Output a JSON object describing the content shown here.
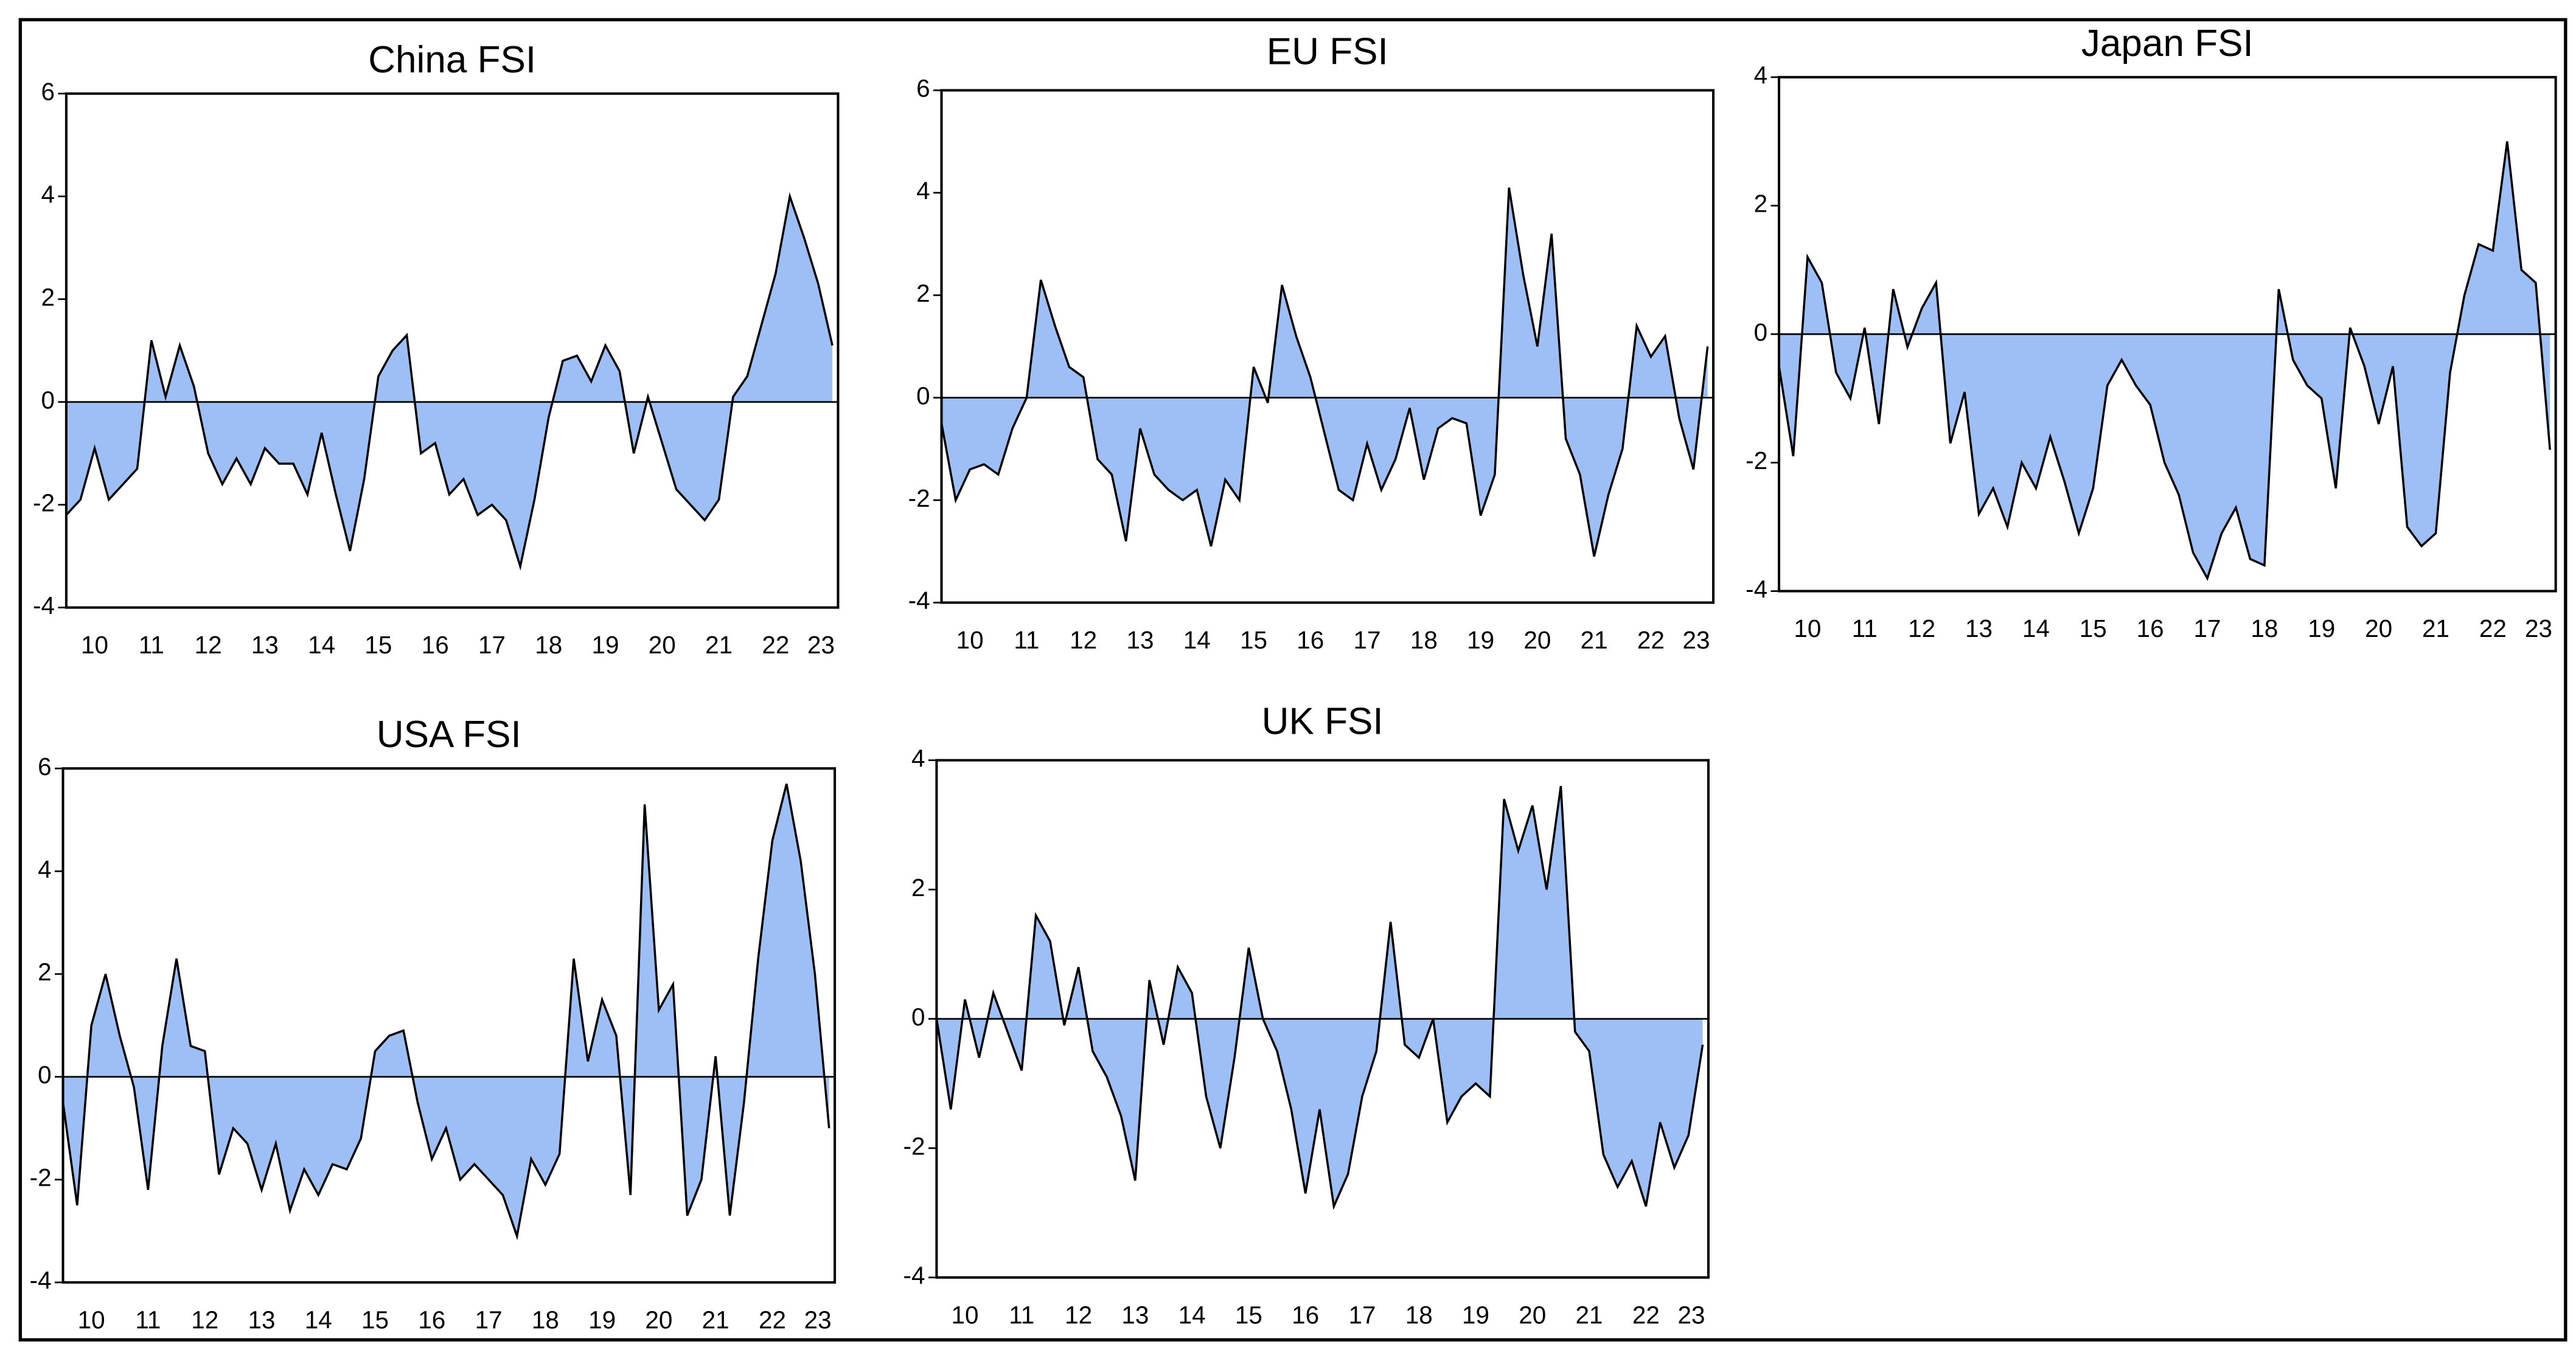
{
  "chart_data": [
    {
      "type": "area",
      "title": "China FSI",
      "color": "#9dbff5",
      "line_color": "#000000",
      "x": [
        2010,
        2010.25,
        2010.5,
        2010.75,
        2011,
        2011.25,
        2011.5,
        2011.75,
        2012,
        2012.25,
        2012.5,
        2012.75,
        2013,
        2013.25,
        2013.5,
        2013.75,
        2014,
        2014.25,
        2014.5,
        2014.75,
        2015,
        2015.25,
        2015.5,
        2015.75,
        2016,
        2016.25,
        2016.5,
        2016.75,
        2017,
        2017.25,
        2017.5,
        2017.75,
        2018,
        2018.25,
        2018.5,
        2018.75,
        2019,
        2019.25,
        2019.5,
        2019.75,
        2020,
        2020.25,
        2020.5,
        2020.75,
        2021,
        2021.25,
        2021.5,
        2021.75,
        2022,
        2022.25,
        2022.5,
        2022.75,
        2023,
        2023.25,
        2023.5
      ],
      "values": [
        -2.2,
        -1.9,
        -0.9,
        -1.9,
        -1.6,
        -1.3,
        1.2,
        0.1,
        1.1,
        0.3,
        -1.0,
        -1.6,
        -1.1,
        -1.6,
        -0.9,
        -1.2,
        -1.2,
        -1.8,
        -0.6,
        -1.8,
        -2.9,
        -1.5,
        0.5,
        1.0,
        1.3,
        -1.0,
        -0.8,
        -1.8,
        -1.5,
        -2.2,
        -2.0,
        -2.3,
        -3.2,
        -1.9,
        -0.3,
        0.8,
        0.9,
        0.4,
        1.1,
        0.6,
        -1.0,
        0.1,
        -0.8,
        -1.7,
        -2.0,
        -2.3,
        -1.9,
        0.1,
        0.5,
        1.5,
        2.5,
        4.0,
        3.2,
        2.3,
        1.1
      ],
      "xlim": [
        2010,
        2023.6
      ],
      "xticks": [
        {
          "value": 2010.5,
          "label": "10"
        },
        {
          "value": 2011.5,
          "label": "11"
        },
        {
          "value": 2012.5,
          "label": "12"
        },
        {
          "value": 2013.5,
          "label": "13"
        },
        {
          "value": 2014.5,
          "label": "14"
        },
        {
          "value": 2015.5,
          "label": "15"
        },
        {
          "value": 2016.5,
          "label": "16"
        },
        {
          "value": 2017.5,
          "label": "17"
        },
        {
          "value": 2018.5,
          "label": "18"
        },
        {
          "value": 2019.5,
          "label": "19"
        },
        {
          "value": 2020.5,
          "label": "20"
        },
        {
          "value": 2021.5,
          "label": "21"
        },
        {
          "value": 2022.5,
          "label": "22"
        },
        {
          "value": 2023.3,
          "label": "23"
        }
      ],
      "ylim": [
        -4,
        6
      ],
      "yticks": [
        -4,
        -2,
        0,
        2,
        4,
        6
      ]
    },
    {
      "type": "area",
      "title": "EU FSI",
      "color": "#9dbff5",
      "line_color": "#000000",
      "x": [
        2010,
        2010.25,
        2010.5,
        2010.75,
        2011,
        2011.25,
        2011.5,
        2011.75,
        2012,
        2012.25,
        2012.5,
        2012.75,
        2013,
        2013.25,
        2013.5,
        2013.75,
        2014,
        2014.25,
        2014.5,
        2014.75,
        2015,
        2015.25,
        2015.5,
        2015.75,
        2016,
        2016.25,
        2016.5,
        2016.75,
        2017,
        2017.25,
        2017.5,
        2017.75,
        2018,
        2018.25,
        2018.5,
        2018.75,
        2019,
        2019.25,
        2019.5,
        2019.75,
        2020,
        2020.25,
        2020.5,
        2020.75,
        2021,
        2021.25,
        2021.5,
        2021.75,
        2022,
        2022.25,
        2022.5,
        2022.75,
        2023,
        2023.25,
        2023.5
      ],
      "values": [
        -0.5,
        -2.0,
        -1.4,
        -1.3,
        -1.5,
        -0.6,
        0.0,
        2.3,
        1.4,
        0.6,
        0.4,
        -1.2,
        -1.5,
        -2.8,
        -0.6,
        -1.5,
        -1.8,
        -2.0,
        -1.8,
        -2.9,
        -1.6,
        -2.0,
        0.6,
        -0.1,
        2.2,
        1.2,
        0.4,
        -0.7,
        -1.8,
        -2.0,
        -0.9,
        -1.8,
        -1.2,
        -0.2,
        -1.6,
        -0.6,
        -0.4,
        -0.5,
        -2.3,
        -1.5,
        4.1,
        2.4,
        1.0,
        3.2,
        -0.8,
        -1.5,
        -3.1,
        -1.9,
        -1.0,
        1.4,
        0.8,
        1.2,
        -0.4,
        -1.4,
        1.0
      ],
      "xlim": [
        2010,
        2023.6
      ],
      "xticks": [
        {
          "value": 2010.5,
          "label": "10"
        },
        {
          "value": 2011.5,
          "label": "11"
        },
        {
          "value": 2012.5,
          "label": "12"
        },
        {
          "value": 2013.5,
          "label": "13"
        },
        {
          "value": 2014.5,
          "label": "14"
        },
        {
          "value": 2015.5,
          "label": "15"
        },
        {
          "value": 2016.5,
          "label": "16"
        },
        {
          "value": 2017.5,
          "label": "17"
        },
        {
          "value": 2018.5,
          "label": "18"
        },
        {
          "value": 2019.5,
          "label": "19"
        },
        {
          "value": 2020.5,
          "label": "20"
        },
        {
          "value": 2021.5,
          "label": "21"
        },
        {
          "value": 2022.5,
          "label": "22"
        },
        {
          "value": 2023.3,
          "label": "23"
        }
      ],
      "ylim": [
        -4,
        6
      ],
      "yticks": [
        -4,
        -2,
        0,
        2,
        4,
        6
      ]
    },
    {
      "type": "area",
      "title": "Japan FSI",
      "color": "#9dbff5",
      "line_color": "#000000",
      "x": [
        2010,
        2010.25,
        2010.5,
        2010.75,
        2011,
        2011.25,
        2011.5,
        2011.75,
        2012,
        2012.25,
        2012.5,
        2012.75,
        2013,
        2013.25,
        2013.5,
        2013.75,
        2014,
        2014.25,
        2014.5,
        2014.75,
        2015,
        2015.25,
        2015.5,
        2015.75,
        2016,
        2016.25,
        2016.5,
        2016.75,
        2017,
        2017.25,
        2017.5,
        2017.75,
        2018,
        2018.25,
        2018.5,
        2018.75,
        2019,
        2019.25,
        2019.5,
        2019.75,
        2020,
        2020.25,
        2020.5,
        2020.75,
        2021,
        2021.25,
        2021.5,
        2021.75,
        2022,
        2022.25,
        2022.5,
        2022.75,
        2023,
        2023.25,
        2023.5
      ],
      "values": [
        -0.5,
        -1.9,
        1.2,
        0.8,
        -0.6,
        -1.0,
        0.1,
        -1.4,
        0.7,
        -0.2,
        0.4,
        0.8,
        -1.7,
        -0.9,
        -2.8,
        -2.4,
        -3.0,
        -2.0,
        -2.4,
        -1.6,
        -2.3,
        -3.1,
        -2.4,
        -0.8,
        -0.4,
        -0.8,
        -1.1,
        -2.0,
        -2.5,
        -3.4,
        -3.8,
        -3.1,
        -2.7,
        -3.5,
        -3.6,
        0.7,
        -0.4,
        -0.8,
        -1.0,
        -2.4,
        0.1,
        -0.5,
        -1.4,
        -0.5,
        -3.0,
        -3.3,
        -3.1,
        -0.6,
        0.6,
        1.4,
        1.3,
        3.0,
        1.0,
        0.8,
        -1.8
      ],
      "xlim": [
        2010,
        2023.6
      ],
      "xticks": [
        {
          "value": 2010.5,
          "label": "10"
        },
        {
          "value": 2011.5,
          "label": "11"
        },
        {
          "value": 2012.5,
          "label": "12"
        },
        {
          "value": 2013.5,
          "label": "13"
        },
        {
          "value": 2014.5,
          "label": "14"
        },
        {
          "value": 2015.5,
          "label": "15"
        },
        {
          "value": 2016.5,
          "label": "16"
        },
        {
          "value": 2017.5,
          "label": "17"
        },
        {
          "value": 2018.5,
          "label": "18"
        },
        {
          "value": 2019.5,
          "label": "19"
        },
        {
          "value": 2020.5,
          "label": "20"
        },
        {
          "value": 2021.5,
          "label": "21"
        },
        {
          "value": 2022.5,
          "label": "22"
        },
        {
          "value": 2023.3,
          "label": "23"
        }
      ],
      "ylim": [
        -4,
        4
      ],
      "yticks": [
        -4,
        -2,
        0,
        2,
        4
      ]
    },
    {
      "type": "area",
      "title": "USA FSI",
      "color": "#9dbff5",
      "line_color": "#000000",
      "x": [
        2010,
        2010.25,
        2010.5,
        2010.75,
        2011,
        2011.25,
        2011.5,
        2011.75,
        2012,
        2012.25,
        2012.5,
        2012.75,
        2013,
        2013.25,
        2013.5,
        2013.75,
        2014,
        2014.25,
        2014.5,
        2014.75,
        2015,
        2015.25,
        2015.5,
        2015.75,
        2016,
        2016.25,
        2016.5,
        2016.75,
        2017,
        2017.25,
        2017.5,
        2017.75,
        2018,
        2018.25,
        2018.5,
        2018.75,
        2019,
        2019.25,
        2019.5,
        2019.75,
        2020,
        2020.25,
        2020.5,
        2020.75,
        2021,
        2021.25,
        2021.5,
        2021.75,
        2022,
        2022.25,
        2022.5,
        2022.75,
        2023,
        2023.25,
        2023.5
      ],
      "values": [
        -0.5,
        -2.5,
        1.0,
        2.0,
        0.8,
        -0.2,
        -2.2,
        0.6,
        2.3,
        0.6,
        0.5,
        -1.9,
        -1.0,
        -1.3,
        -2.2,
        -1.3,
        -2.6,
        -1.8,
        -2.3,
        -1.7,
        -1.8,
        -1.2,
        0.5,
        0.8,
        0.9,
        -0.5,
        -1.6,
        -1.0,
        -2.0,
        -1.7,
        -2.0,
        -2.3,
        -3.1,
        -1.6,
        -2.1,
        -1.5,
        2.3,
        0.3,
        1.5,
        0.8,
        -2.3,
        5.3,
        1.3,
        1.8,
        -2.7,
        -2.0,
        0.4,
        -2.7,
        -0.5,
        2.3,
        4.6,
        5.7,
        4.2,
        2.0,
        -1.0
      ],
      "xlim": [
        2010,
        2023.6
      ],
      "xticks": [
        {
          "value": 2010.5,
          "label": "10"
        },
        {
          "value": 2011.5,
          "label": "11"
        },
        {
          "value": 2012.5,
          "label": "12"
        },
        {
          "value": 2013.5,
          "label": "13"
        },
        {
          "value": 2014.5,
          "label": "14"
        },
        {
          "value": 2015.5,
          "label": "15"
        },
        {
          "value": 2016.5,
          "label": "16"
        },
        {
          "value": 2017.5,
          "label": "17"
        },
        {
          "value": 2018.5,
          "label": "18"
        },
        {
          "value": 2019.5,
          "label": "19"
        },
        {
          "value": 2020.5,
          "label": "20"
        },
        {
          "value": 2021.5,
          "label": "21"
        },
        {
          "value": 2022.5,
          "label": "22"
        },
        {
          "value": 2023.3,
          "label": "23"
        }
      ],
      "ylim": [
        -4,
        6
      ],
      "yticks": [
        -4,
        -2,
        0,
        2,
        4,
        6
      ]
    },
    {
      "type": "area",
      "title": "UK FSI",
      "color": "#9dbff5",
      "line_color": "#000000",
      "x": [
        2010,
        2010.25,
        2010.5,
        2010.75,
        2011,
        2011.25,
        2011.5,
        2011.75,
        2012,
        2012.25,
        2012.5,
        2012.75,
        2013,
        2013.25,
        2013.5,
        2013.75,
        2014,
        2014.25,
        2014.5,
        2014.75,
        2015,
        2015.25,
        2015.5,
        2015.75,
        2016,
        2016.25,
        2016.5,
        2016.75,
        2017,
        2017.25,
        2017.5,
        2017.75,
        2018,
        2018.25,
        2018.5,
        2018.75,
        2019,
        2019.25,
        2019.5,
        2019.75,
        2020,
        2020.25,
        2020.5,
        2020.75,
        2021,
        2021.25,
        2021.5,
        2021.75,
        2022,
        2022.25,
        2022.5,
        2022.75,
        2023,
        2023.25,
        2023.5
      ],
      "values": [
        0.0,
        -1.4,
        0.3,
        -0.6,
        0.4,
        -0.2,
        -0.8,
        1.6,
        1.2,
        -0.1,
        0.8,
        -0.5,
        -0.9,
        -1.5,
        -2.5,
        0.6,
        -0.4,
        0.8,
        0.4,
        -1.2,
        -2.0,
        -0.6,
        1.1,
        0.0,
        -0.5,
        -1.4,
        -2.7,
        -1.4,
        -2.9,
        -2.4,
        -1.2,
        -0.5,
        1.5,
        -0.4,
        -0.6,
        0.0,
        -1.6,
        -1.2,
        -1.0,
        -1.2,
        3.4,
        2.6,
        3.3,
        2.0,
        3.6,
        -0.2,
        -0.5,
        -2.1,
        -2.6,
        -2.2,
        -2.9,
        -1.6,
        -2.3,
        -1.8,
        -0.4
      ],
      "xlim": [
        2010,
        2023.6
      ],
      "xticks": [
        {
          "value": 2010.5,
          "label": "10"
        },
        {
          "value": 2011.5,
          "label": "11"
        },
        {
          "value": 2012.5,
          "label": "12"
        },
        {
          "value": 2013.5,
          "label": "13"
        },
        {
          "value": 2014.5,
          "label": "14"
        },
        {
          "value": 2015.5,
          "label": "15"
        },
        {
          "value": 2016.5,
          "label": "16"
        },
        {
          "value": 2017.5,
          "label": "17"
        },
        {
          "value": 2018.5,
          "label": "18"
        },
        {
          "value": 2019.5,
          "label": "19"
        },
        {
          "value": 2020.5,
          "label": "20"
        },
        {
          "value": 2021.5,
          "label": "21"
        },
        {
          "value": 2022.5,
          "label": "22"
        },
        {
          "value": 2023.3,
          "label": "23"
        }
      ],
      "ylim": [
        -4,
        4
      ],
      "yticks": [
        -4,
        -2,
        0,
        2,
        4
      ]
    }
  ]
}
